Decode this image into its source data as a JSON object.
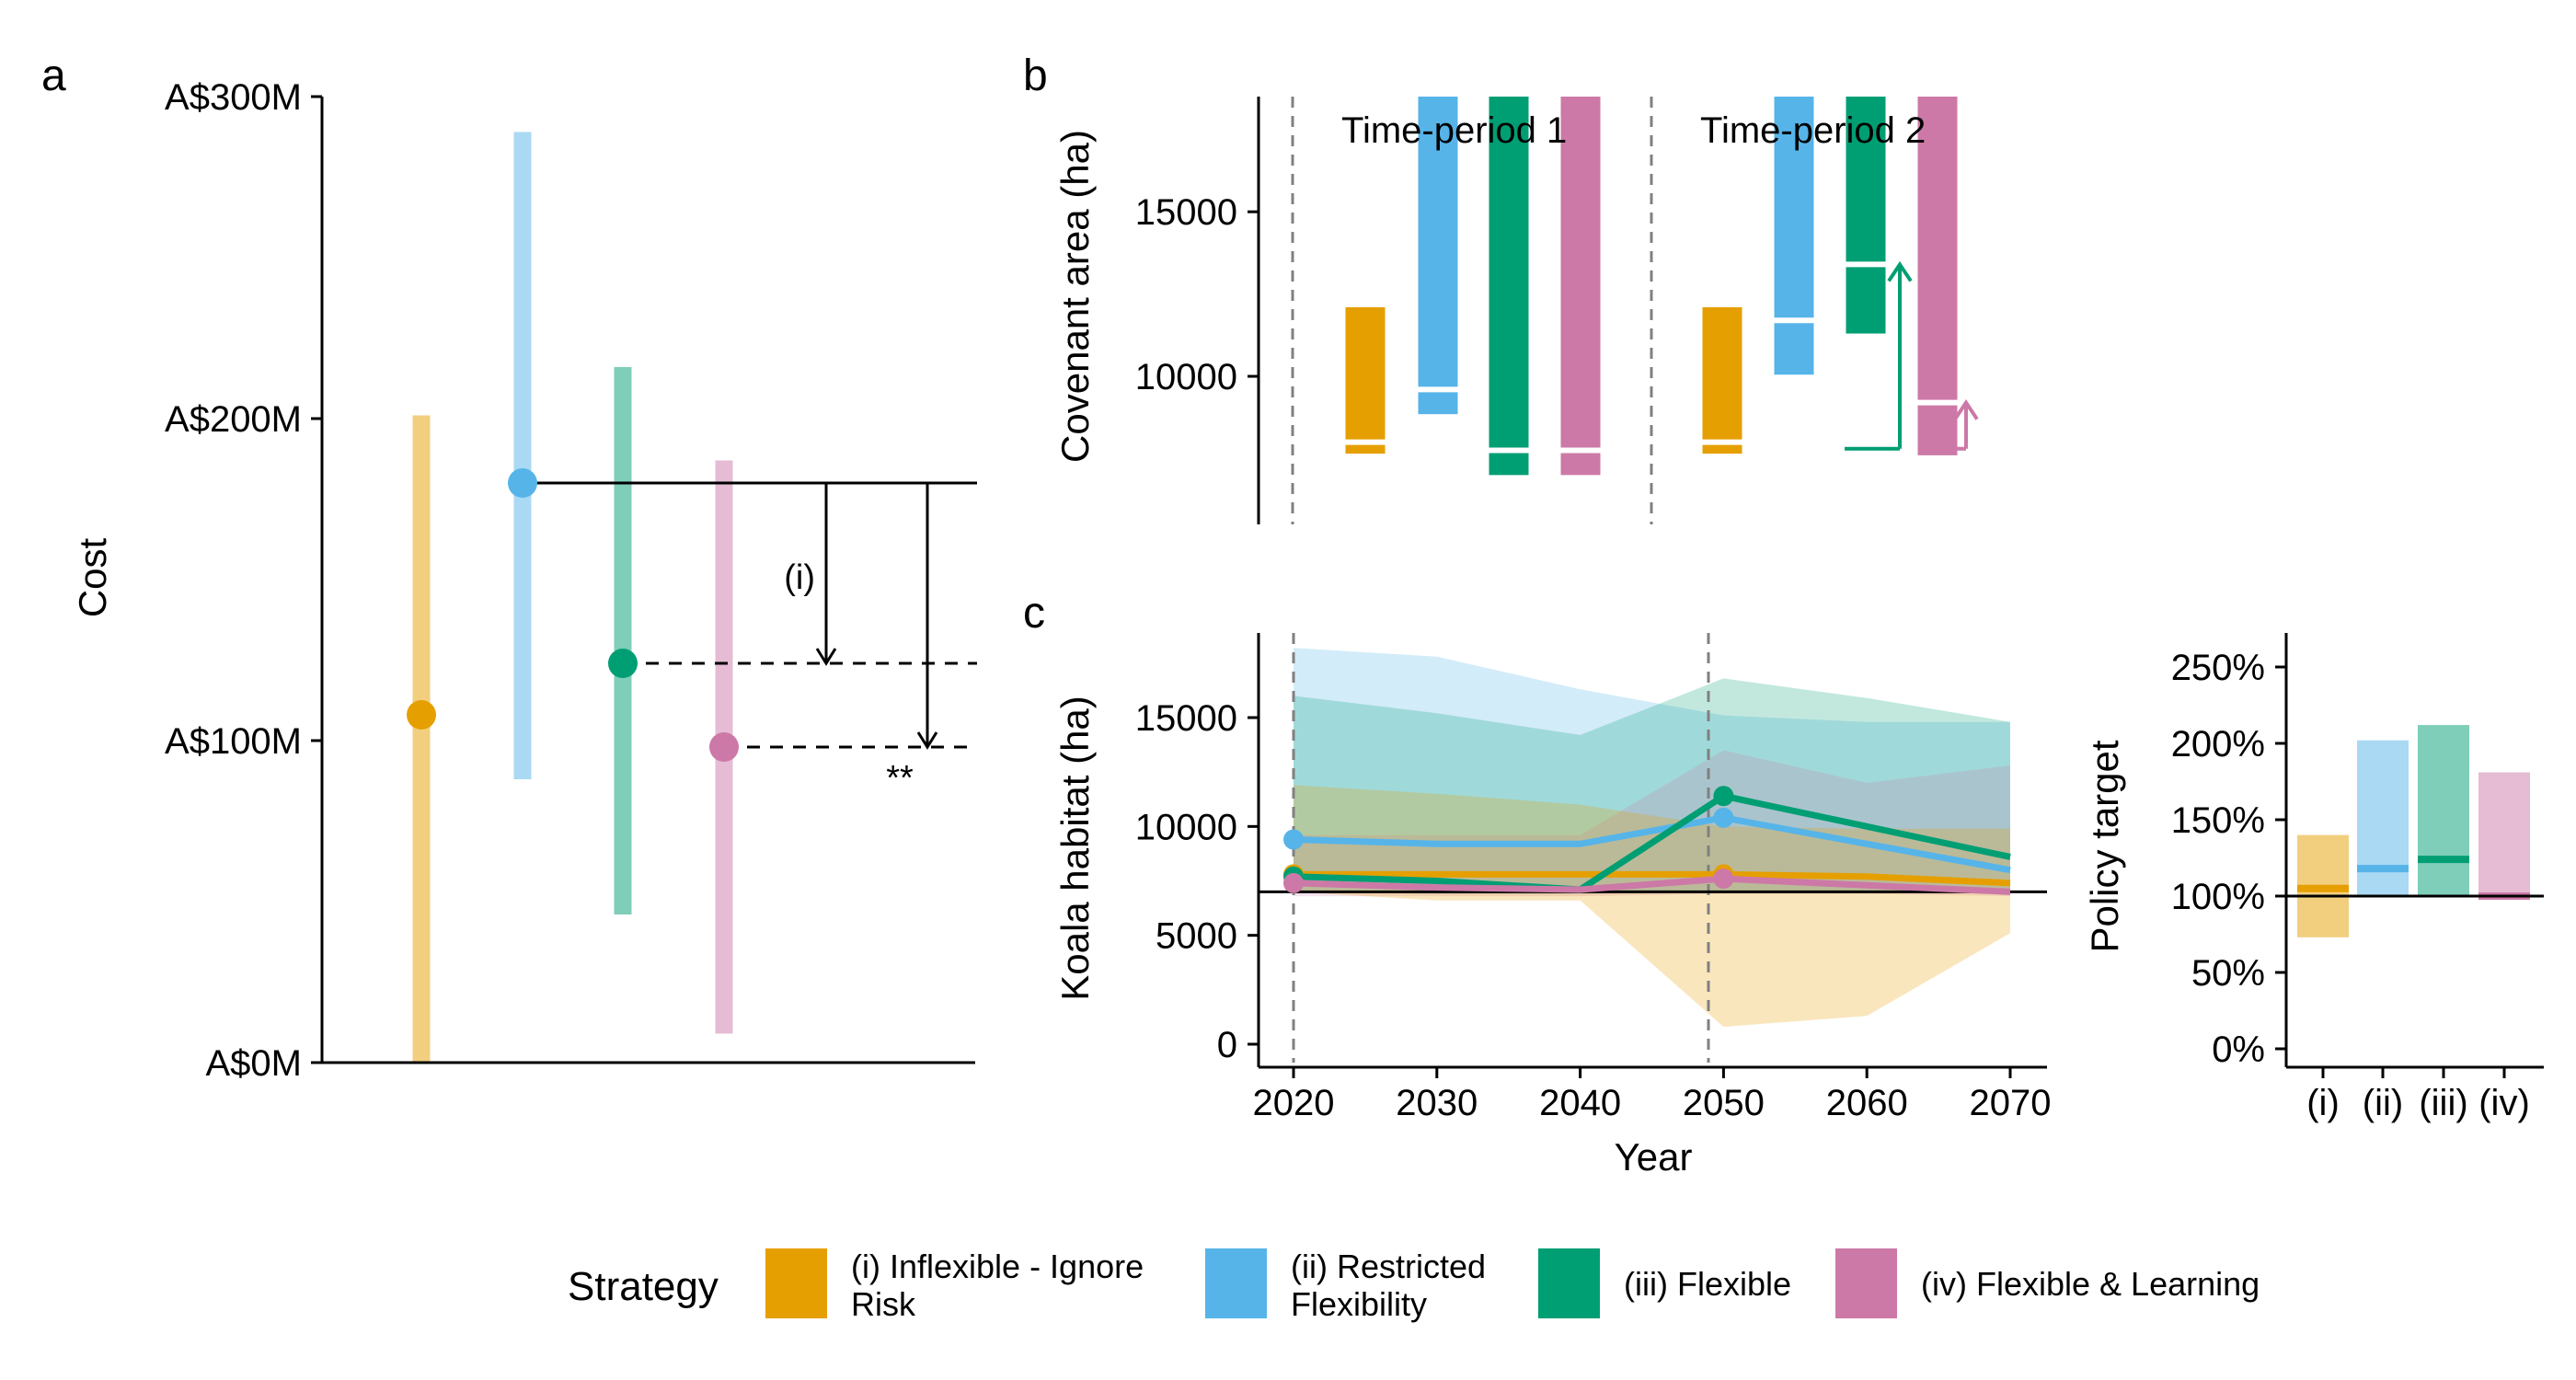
{
  "colors": {
    "i": "#E69F00",
    "ii": "#56B4E9",
    "iii": "#009E73",
    "iv": "#CC79A7"
  },
  "legend": {
    "title": "Strategy",
    "items": [
      {
        "key": "i",
        "lines": [
          "(i) Inflexible - Ignore",
          "Risk"
        ]
      },
      {
        "key": "ii",
        "lines": [
          "(ii) Restricted",
          "Flexibility"
        ]
      },
      {
        "key": "iii",
        "lines": [
          "(iii) Flexible"
        ]
      },
      {
        "key": "iv",
        "lines": [
          "(iv) Flexible & Learning"
        ]
      }
    ]
  },
  "chart_data": [
    {
      "panel": "a",
      "type": "scatter",
      "ylabel": "Cost",
      "ylim": [
        0,
        300
      ],
      "yticks": [
        0,
        100,
        200,
        300
      ],
      "ytick_labels": [
        "A$0M",
        "A$100M",
        "A$200M",
        "A$300M"
      ],
      "series": [
        {
          "key": "i",
          "value": 108,
          "low": 0,
          "high": 201
        },
        {
          "key": "ii",
          "value": 180,
          "low": 88,
          "high": 289
        },
        {
          "key": "iii",
          "value": 124,
          "low": 46,
          "high": 216
        },
        {
          "key": "iv",
          "value": 98,
          "low": 9,
          "high": 187
        }
      ],
      "annotations": [
        {
          "text": "(i)",
          "from": 180,
          "to": 124
        },
        {
          "text": "**",
          "from": 180,
          "to": 98
        }
      ]
    },
    {
      "panel": "b",
      "type": "bar",
      "ylabel": "Covenant area (ha)",
      "ylim": [
        5500,
        18500
      ],
      "yticks": [
        10000,
        15000
      ],
      "period_labels": [
        "Time-period 1",
        "Time-period 2"
      ],
      "periods": [
        [
          {
            "key": "i",
            "low": 7650,
            "high": 12100,
            "mid": 8000
          },
          {
            "key": "ii",
            "low": 8850,
            "high": 18500,
            "mid": 9600
          },
          {
            "key": "iii",
            "low": 7000,
            "high": 18500,
            "mid": 7750
          },
          {
            "key": "iv",
            "low": 7000,
            "high": 18500,
            "mid": 7750
          }
        ],
        [
          {
            "key": "i",
            "low": 7650,
            "high": 12100,
            "mid": 8000
          },
          {
            "key": "ii",
            "low": 10050,
            "high": 18500,
            "mid": 11700
          },
          {
            "key": "iii",
            "low": 11300,
            "high": 18500,
            "mid": 13400
          },
          {
            "key": "iv",
            "low": 7600,
            "high": 18500,
            "mid": 9200
          }
        ]
      ],
      "arrows": [
        {
          "key": "iii",
          "from": 7800,
          "to": 13400
        },
        {
          "key": "iv",
          "from": 7800,
          "to": 9200
        }
      ]
    },
    {
      "panel": "c",
      "type": "line",
      "xlabel": "Year",
      "ylabel": "Koala habitat (ha)",
      "xlim": [
        2015,
        2071
      ],
      "ylim": [
        -700,
        18800
      ],
      "xticks": [
        2020,
        2030,
        2040,
        2050,
        2060,
        2070
      ],
      "yticks": [
        0,
        5000,
        10000,
        15000
      ],
      "reference_line": 7000,
      "x": [
        2020,
        2030,
        2040,
        2050,
        2060,
        2070
      ],
      "series": [
        {
          "key": "i",
          "values": [
            7800,
            7800,
            7800,
            7800,
            7700,
            7400
          ],
          "low": [
            7000,
            6600,
            6600,
            800,
            1300,
            5100
          ],
          "high": [
            11900,
            11500,
            11000,
            10000,
            9900,
            9900
          ]
        },
        {
          "key": "ii",
          "values": [
            9400,
            9200,
            9200,
            10400,
            9200,
            8000
          ],
          "low": [
            7100,
            7100,
            7000,
            7000,
            7000,
            7000
          ],
          "high": [
            18200,
            17800,
            16300,
            15100,
            14800,
            14800
          ]
        },
        {
          "key": "iii",
          "values": [
            7700,
            7500,
            7100,
            11400,
            10000,
            8600
          ],
          "low": [
            7000,
            6900,
            6900,
            7000,
            7000,
            7000
          ],
          "high": [
            16000,
            15200,
            14200,
            16800,
            15900,
            14800
          ]
        },
        {
          "key": "iv",
          "values": [
            7400,
            7200,
            7100,
            7600,
            7300,
            7000
          ],
          "low": [
            6800,
            6800,
            6800,
            6900,
            6900,
            6800
          ],
          "high": [
            9600,
            9600,
            9600,
            13500,
            12000,
            12800
          ]
        }
      ]
    },
    {
      "panel": "c-right",
      "type": "bar",
      "ylabel": "Policy target",
      "ylim": [
        -10,
        270
      ],
      "yticks": [
        0,
        50,
        100,
        150,
        200,
        250
      ],
      "ytick_labels": [
        "0%",
        "50%",
        "100%",
        "150%",
        "200%",
        "250%"
      ],
      "categories": [
        "(i)",
        "(ii)",
        "(iii)",
        "(iv)"
      ],
      "reference_line": 100,
      "bars": [
        {
          "key": "i",
          "low": 73,
          "high": 140,
          "mid": 105
        },
        {
          "key": "ii",
          "low": 100,
          "high": 202,
          "mid": 118
        },
        {
          "key": "iii",
          "low": 100,
          "high": 212,
          "mid": 124
        },
        {
          "key": "iv",
          "low": 100,
          "high": 181,
          "mid": 100
        }
      ]
    }
  ],
  "panel_labels": [
    "a",
    "b",
    "c"
  ]
}
